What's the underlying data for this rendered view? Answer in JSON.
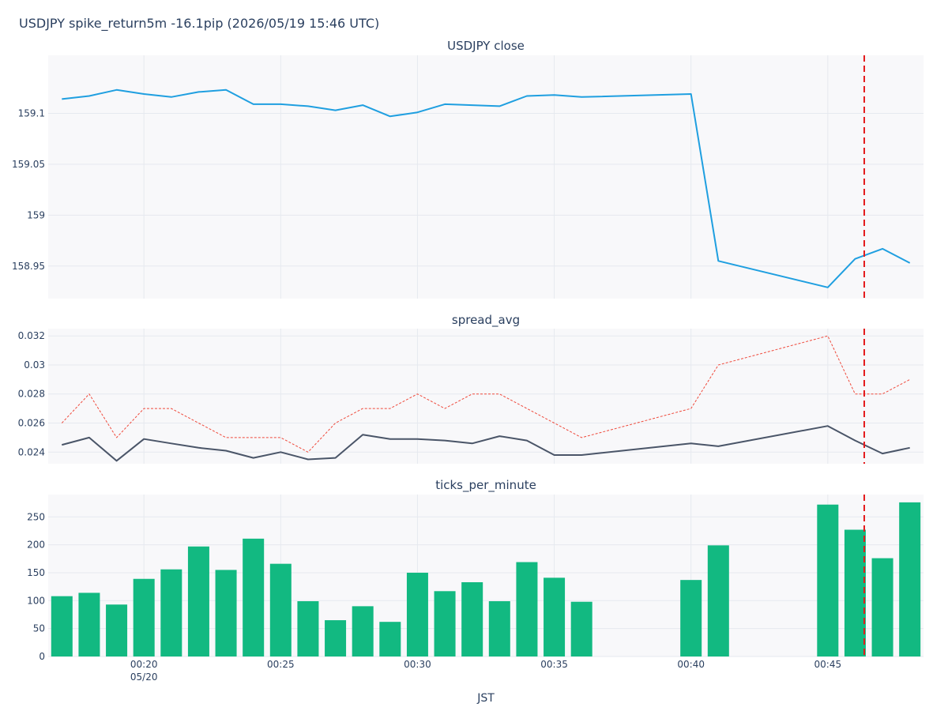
{
  "page": {
    "title": "USDJPY spike_return5m -16.1pip (2026/05/19 15:46 UTC)"
  },
  "chart_data": [
    {
      "type": "line",
      "title": "USDJPY close",
      "x": [
        "00:17",
        "00:18",
        "00:19",
        "00:20",
        "00:21",
        "00:22",
        "00:23",
        "00:24",
        "00:25",
        "00:26",
        "00:27",
        "00:28",
        "00:29",
        "00:30",
        "00:31",
        "00:32",
        "00:33",
        "00:34",
        "00:35",
        "00:36",
        "00:40",
        "00:41",
        "00:45",
        "00:46",
        "00:47",
        "00:48"
      ],
      "series": [
        {
          "values": [
            159.114,
            159.117,
            159.123,
            159.119,
            159.116,
            159.121,
            159.123,
            159.109,
            159.109,
            159.107,
            159.103,
            159.108,
            159.097,
            159.101,
            159.109,
            159.108,
            159.107,
            159.117,
            159.118,
            159.116,
            159.119,
            158.955,
            158.929,
            158.957,
            158.967,
            158.953
          ],
          "color": "#1f9fe0"
        }
      ],
      "ylim": [
        158.918,
        159.157
      ],
      "yticks": [
        158.95,
        159,
        159.05,
        159.1
      ],
      "ytick_labels": [
        "158.95",
        "159",
        "159.05",
        "159.1"
      ],
      "grid": true
    },
    {
      "type": "line",
      "title": "spread_avg",
      "x": [
        "00:17",
        "00:18",
        "00:19",
        "00:20",
        "00:21",
        "00:22",
        "00:23",
        "00:24",
        "00:25",
        "00:26",
        "00:27",
        "00:28",
        "00:29",
        "00:30",
        "00:31",
        "00:32",
        "00:33",
        "00:34",
        "00:35",
        "00:36",
        "00:40",
        "00:41",
        "00:45",
        "00:46",
        "00:47",
        "00:48"
      ],
      "series": [
        {
          "values": [
            0.0245,
            0.025,
            0.0234,
            0.0249,
            0.0246,
            0.0243,
            0.0241,
            0.0236,
            0.024,
            0.0235,
            0.0236,
            0.0252,
            0.0249,
            0.0249,
            0.0248,
            0.0246,
            0.0251,
            0.0248,
            0.0238,
            0.0238,
            0.0246,
            0.0244,
            0.0258,
            0.0248,
            0.0239,
            0.0243
          ],
          "color": "#4a5568",
          "dash": "solid"
        },
        {
          "values": [
            0.026,
            0.028,
            0.025,
            0.027,
            0.027,
            0.026,
            0.025,
            0.025,
            0.025,
            0.024,
            0.026,
            0.027,
            0.027,
            0.028,
            0.027,
            0.028,
            0.028,
            0.027,
            0.026,
            0.025,
            0.027,
            0.03,
            0.032,
            0.028,
            0.028,
            0.029
          ],
          "color": "#ef4a3c",
          "dash": "dotted"
        }
      ],
      "ylim": [
        0.0232,
        0.0325
      ],
      "yticks": [
        0.024,
        0.026,
        0.028,
        0.03,
        0.032
      ],
      "ytick_labels": [
        "0.024",
        "0.026",
        "0.028",
        "0.03",
        "0.032"
      ],
      "grid": true
    },
    {
      "type": "bar",
      "title": "ticks_per_minute",
      "x": [
        "00:17",
        "00:18",
        "00:19",
        "00:20",
        "00:21",
        "00:22",
        "00:23",
        "00:24",
        "00:25",
        "00:26",
        "00:27",
        "00:28",
        "00:29",
        "00:30",
        "00:31",
        "00:32",
        "00:33",
        "00:34",
        "00:35",
        "00:36",
        "00:40",
        "00:41",
        "00:45",
        "00:46",
        "00:47",
        "00:48"
      ],
      "values": [
        108,
        114,
        93,
        139,
        156,
        197,
        155,
        211,
        166,
        99,
        65,
        90,
        62,
        150,
        117,
        133,
        99,
        169,
        141,
        98,
        137,
        199,
        272,
        227,
        176,
        276
      ],
      "color": "#12b981",
      "ylim": [
        0,
        290
      ],
      "yticks": [
        0,
        50,
        100,
        150,
        200,
        250
      ],
      "ytick_labels": [
        "0",
        "50",
        "100",
        "150",
        "200",
        "250"
      ],
      "grid": true
    }
  ],
  "x_axis": {
    "label": "JST",
    "ticks": [
      "00:20",
      "00:25",
      "00:30",
      "00:35",
      "00:40",
      "00:45"
    ],
    "date_label": "05/20",
    "date_under_tick": "00:20"
  },
  "event": {
    "time": "00:46:20",
    "color": "#e31a1c"
  },
  "colors": {
    "plot_bg": "#f8f8fa",
    "grid": "#e6e9ef",
    "text": "#2a3f5f"
  }
}
